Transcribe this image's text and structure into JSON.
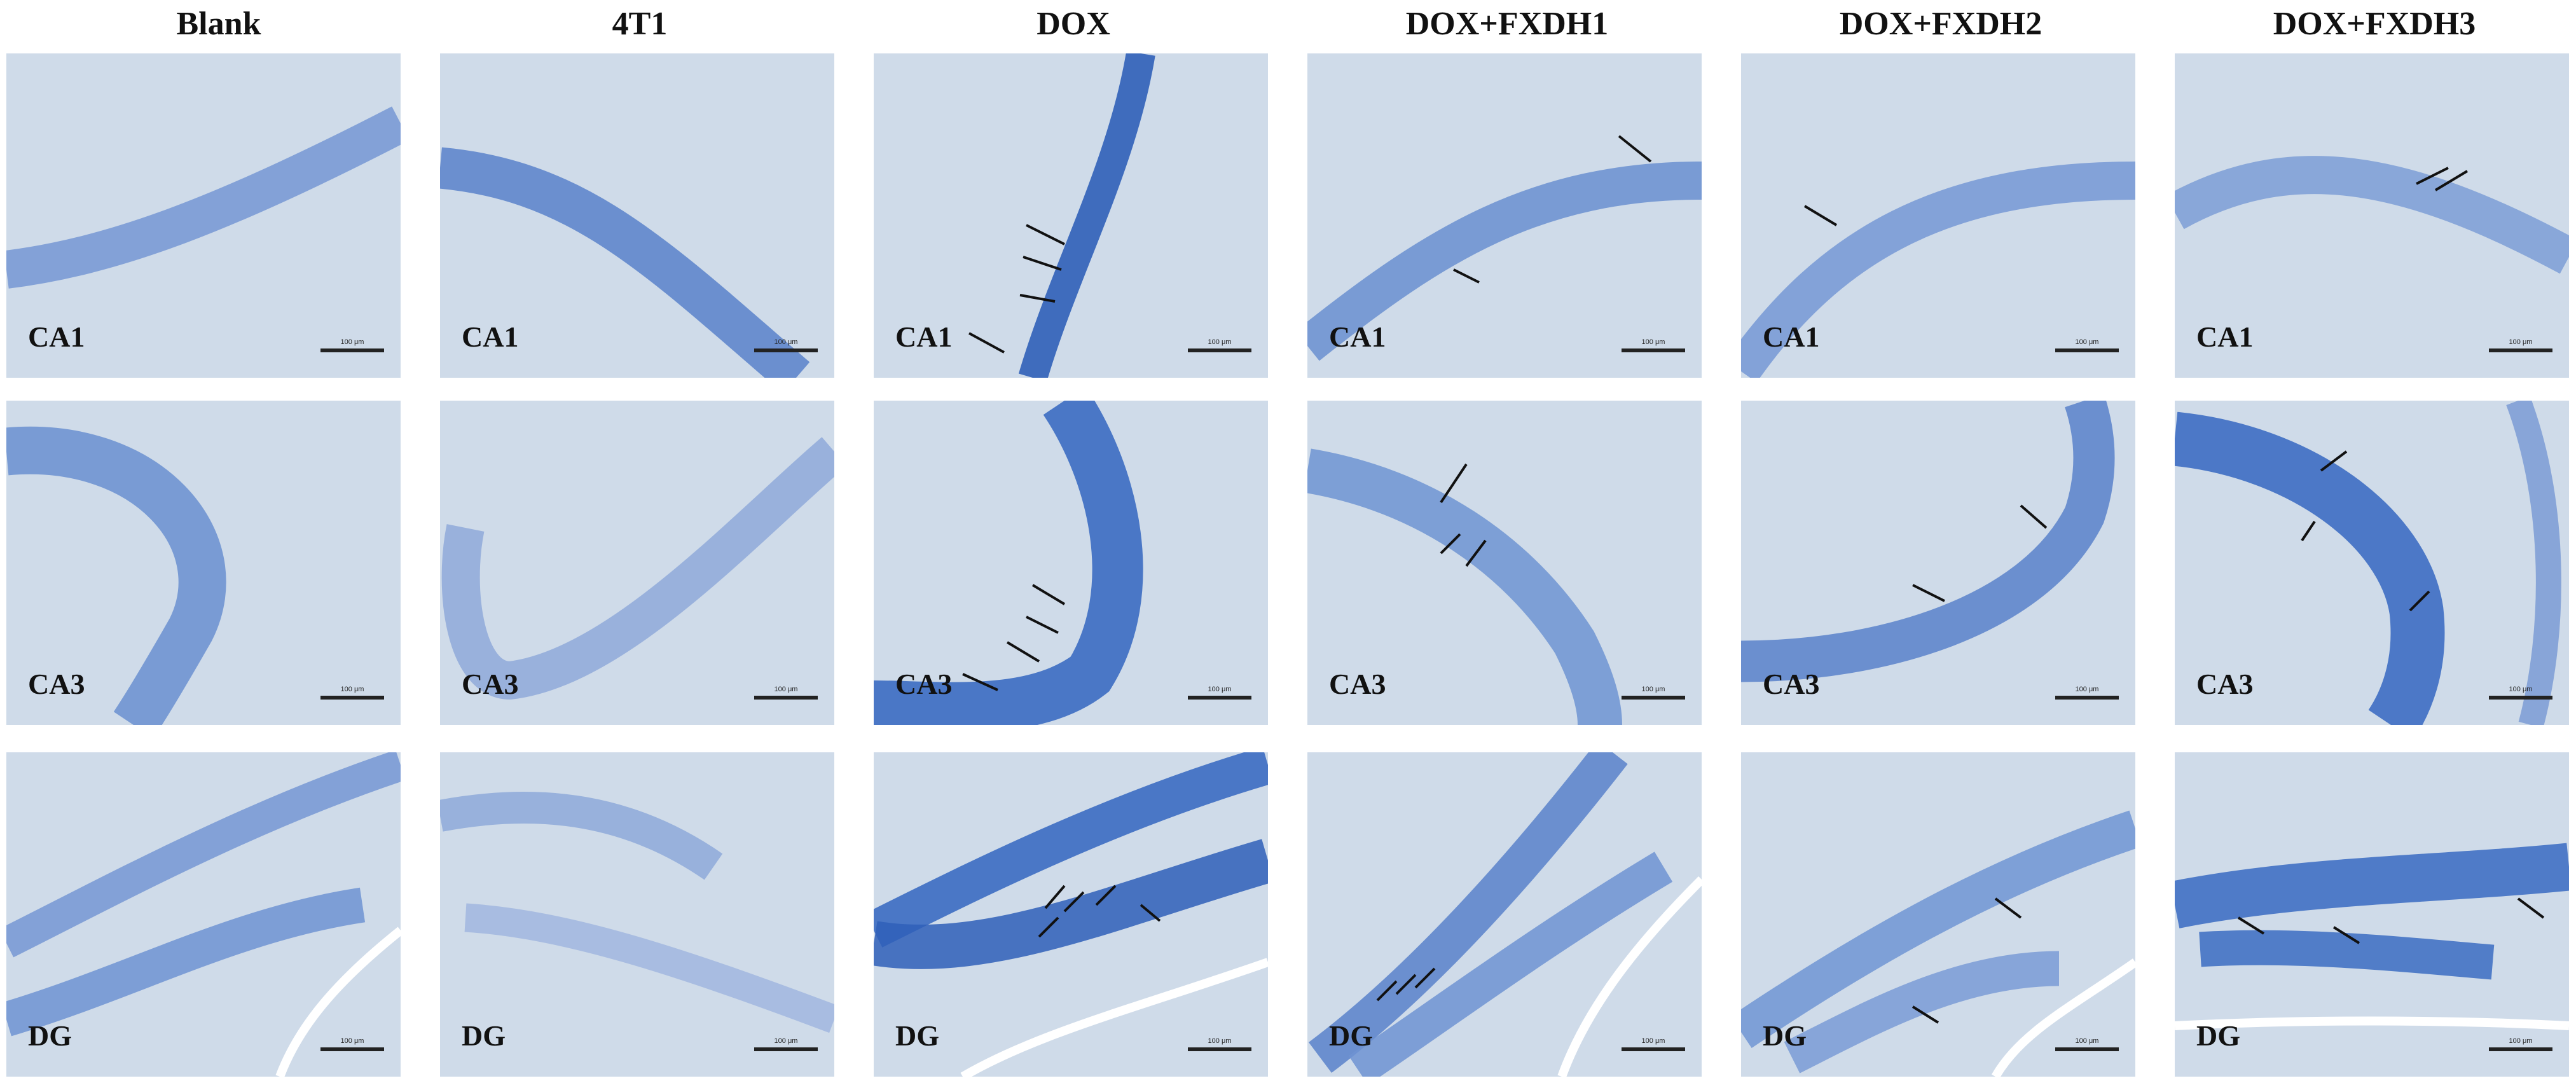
{
  "columns": [
    "Blank",
    "4T1",
    "DOX",
    "DOX+FXDH1",
    "DOX+FXDH2",
    "DOX+FXDH3"
  ],
  "rows": [
    "CA1",
    "CA3",
    "DG"
  ],
  "scale_bar_label": "100 μm",
  "stain_colors": {
    "background": "#cfdbe9",
    "neuron_layer": "#6f93d2",
    "neuron_layer_dark": "#2f5fb8",
    "arrow": "#111111"
  }
}
